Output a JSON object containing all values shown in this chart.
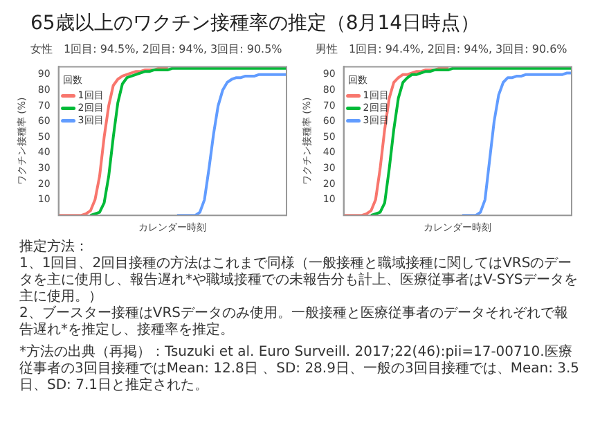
{
  "chart_data": [
    {
      "type": "line",
      "title": "65歳以上のワクチン接種率の推定（8月14日時点）",
      "subtitle": "女性　1回目: 94.5%, 2回目: 94%, 3回目: 90.5%",
      "xlabel": "カレンダー時刻",
      "ylabel": "ワクチン接種率 (%)",
      "legend_title": "回数",
      "legend": "top left",
      "grid": false,
      "tick_labels": "y",
      "ylim": [
        0,
        95
      ],
      "yticks": [
        10,
        20,
        30,
        40,
        50,
        60,
        70,
        80,
        90
      ],
      "categories": [
        null,
        null,
        null,
        null,
        null,
        null,
        null,
        null,
        null,
        null,
        null,
        null,
        null,
        null,
        null,
        null,
        null,
        null,
        null,
        null,
        null,
        null,
        null,
        null,
        null,
        null,
        null,
        null,
        null,
        null,
        null,
        null,
        null,
        null,
        null,
        null,
        null,
        null,
        null,
        null,
        null,
        null,
        null,
        null,
        null,
        null,
        null,
        null,
        null,
        null,
        null
      ],
      "series": [
        {
          "name": "1回目",
          "color": "#f8766d",
          "values": [
            0,
            0,
            0,
            0,
            0,
            0,
            1,
            3,
            10,
            25,
            50,
            70,
            83,
            87,
            89,
            90,
            91,
            92,
            92,
            93,
            93,
            93,
            94,
            94,
            94,
            null,
            null,
            null,
            null,
            null,
            null,
            null,
            null,
            null,
            null,
            null,
            null,
            null,
            null,
            null,
            null,
            null,
            null,
            null,
            null,
            null,
            null,
            null,
            null,
            null,
            null
          ]
        },
        {
          "name": "2回目",
          "color": "#00ba38",
          "values": [
            null,
            null,
            null,
            null,
            null,
            null,
            null,
            0,
            1,
            2,
            8,
            25,
            50,
            72,
            84,
            88,
            89,
            90,
            91,
            92,
            92,
            93,
            93,
            93,
            93,
            94,
            94,
            94,
            94,
            94,
            94,
            94,
            94,
            94,
            94,
            94,
            94,
            94,
            94,
            94,
            94,
            94,
            94,
            94,
            94,
            94,
            94,
            94,
            94,
            94,
            94
          ]
        },
        {
          "name": "3回目",
          "color": "#619cff",
          "values": [
            null,
            null,
            null,
            null,
            null,
            null,
            null,
            null,
            null,
            null,
            null,
            null,
            null,
            null,
            null,
            null,
            null,
            null,
            null,
            null,
            null,
            null,
            null,
            null,
            null,
            null,
            0,
            0,
            0,
            0,
            0,
            2,
            10,
            30,
            52,
            70,
            80,
            85,
            87,
            88,
            88,
            89,
            89,
            89,
            90,
            90,
            90,
            90,
            90,
            90,
            90
          ]
        }
      ]
    },
    {
      "type": "line",
      "subtitle": "男性　1回目: 94.4%, 2回目: 94%, 3回目: 90.6%",
      "xlabel": "カレンダー時刻",
      "ylabel": "ワクチン接種率 (%)",
      "legend_title": "回数",
      "legend": "top left",
      "grid": false,
      "tick_labels": "y",
      "ylim": [
        0,
        95
      ],
      "yticks": [
        10,
        20,
        30,
        40,
        50,
        60,
        70,
        80,
        90
      ],
      "categories": [
        null,
        null,
        null,
        null,
        null,
        null,
        null,
        null,
        null,
        null,
        null,
        null,
        null,
        null,
        null,
        null,
        null,
        null,
        null,
        null,
        null,
        null,
        null,
        null,
        null,
        null,
        null,
        null,
        null,
        null,
        null,
        null,
        null,
        null,
        null,
        null,
        null,
        null,
        null,
        null,
        null,
        null,
        null,
        null,
        null,
        null,
        null,
        null,
        null,
        null,
        null
      ],
      "series": [
        {
          "name": "1回目",
          "color": "#f8766d",
          "values": [
            0,
            0,
            0,
            0,
            0,
            1,
            3,
            10,
            30,
            55,
            75,
            85,
            88,
            90,
            90,
            91,
            92,
            92,
            93,
            93,
            93,
            94,
            94,
            94,
            null,
            null,
            null,
            null,
            null,
            null,
            null,
            null,
            null,
            null,
            null,
            null,
            null,
            null,
            null,
            null,
            null,
            null,
            null,
            null,
            null,
            null,
            null,
            null,
            null,
            null,
            null
          ]
        },
        {
          "name": "2回目",
          "color": "#00ba38",
          "values": [
            null,
            null,
            null,
            null,
            null,
            null,
            0,
            1,
            2,
            8,
            30,
            55,
            75,
            85,
            88,
            90,
            90,
            91,
            92,
            92,
            93,
            93,
            93,
            93,
            94,
            94,
            94,
            94,
            94,
            94,
            94,
            94,
            94,
            94,
            94,
            94,
            94,
            94,
            94,
            94,
            94,
            94,
            94,
            94,
            94,
            94,
            94,
            94,
            94,
            94,
            94
          ]
        },
        {
          "name": "3回目",
          "color": "#619cff",
          "values": [
            null,
            null,
            null,
            null,
            null,
            null,
            null,
            null,
            null,
            null,
            null,
            null,
            null,
            null,
            null,
            null,
            null,
            null,
            null,
            null,
            null,
            null,
            null,
            null,
            null,
            null,
            0,
            0,
            0,
            0,
            2,
            10,
            35,
            60,
            77,
            85,
            88,
            88,
            89,
            89,
            90,
            90,
            90,
            90,
            90,
            90,
            90,
            90,
            90,
            91,
            91
          ]
        }
      ],
      "annotations": [
        "推定方法：",
        "1、1回目、2回目接種の方法はこれまで同様（一般接種と職域接種に関してはVRSのデータを主に使用し、報告遅れ*や職域接種での未報告分も計上、医療従事者はV-SYSデータを主に使用。）",
        "2、ブースター接種はVRSデータのみ使用。一般接種と医療従事者のデータそれぞれで報告遅れ*を推定し、接種率を推定。",
        "*方法の出典（再掲）：Tsuzuki et al. Euro Surveill. 2017;22(46):pii=17-00710.医療従事者の3回目接種ではMean: 12.8日 、SD: 28.9日、一般の3回目接種では、Mean: 3.5日、SD: 7.1日と推定された。"
      ]
    }
  ]
}
